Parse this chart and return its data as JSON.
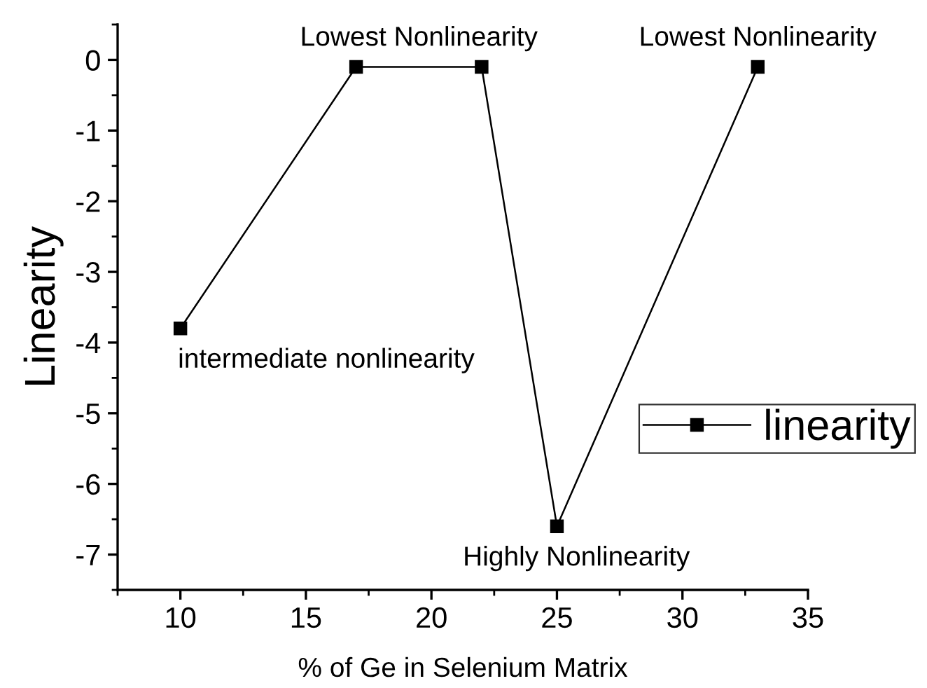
{
  "chart_data": {
    "type": "line",
    "xlabel": "% of Ge in Selenium Matrix",
    "ylabel": "Linearity",
    "x": [
      10,
      17,
      22,
      25,
      33
    ],
    "series": [
      {
        "name": "linearity",
        "color": "#000000",
        "values": [
          -3.8,
          -0.1,
          -0.1,
          -6.6,
          -0.1
        ]
      }
    ],
    "xlim": [
      7.5,
      35
    ],
    "xticks": [
      10,
      15,
      20,
      25,
      30,
      35
    ],
    "ylim": [
      -7.5,
      0.5
    ],
    "yticks": [
      -7,
      -6,
      -5,
      -4,
      -3,
      -2,
      -1,
      0
    ],
    "marker": "square",
    "line_style": "solid",
    "grid": false,
    "legend": "right",
    "annotations": [
      {
        "text": "Lowest Nonlinearity",
        "x": 19.5,
        "y": -0.1
      },
      {
        "text": "Lowest Nonlinearity",
        "x": 33,
        "y": -0.1
      },
      {
        "text": "intermediate nonlinearity",
        "x": 10,
        "y": -3.8
      },
      {
        "text": "Highly Nonlinearity",
        "x": 25,
        "y": -6.6
      }
    ]
  }
}
